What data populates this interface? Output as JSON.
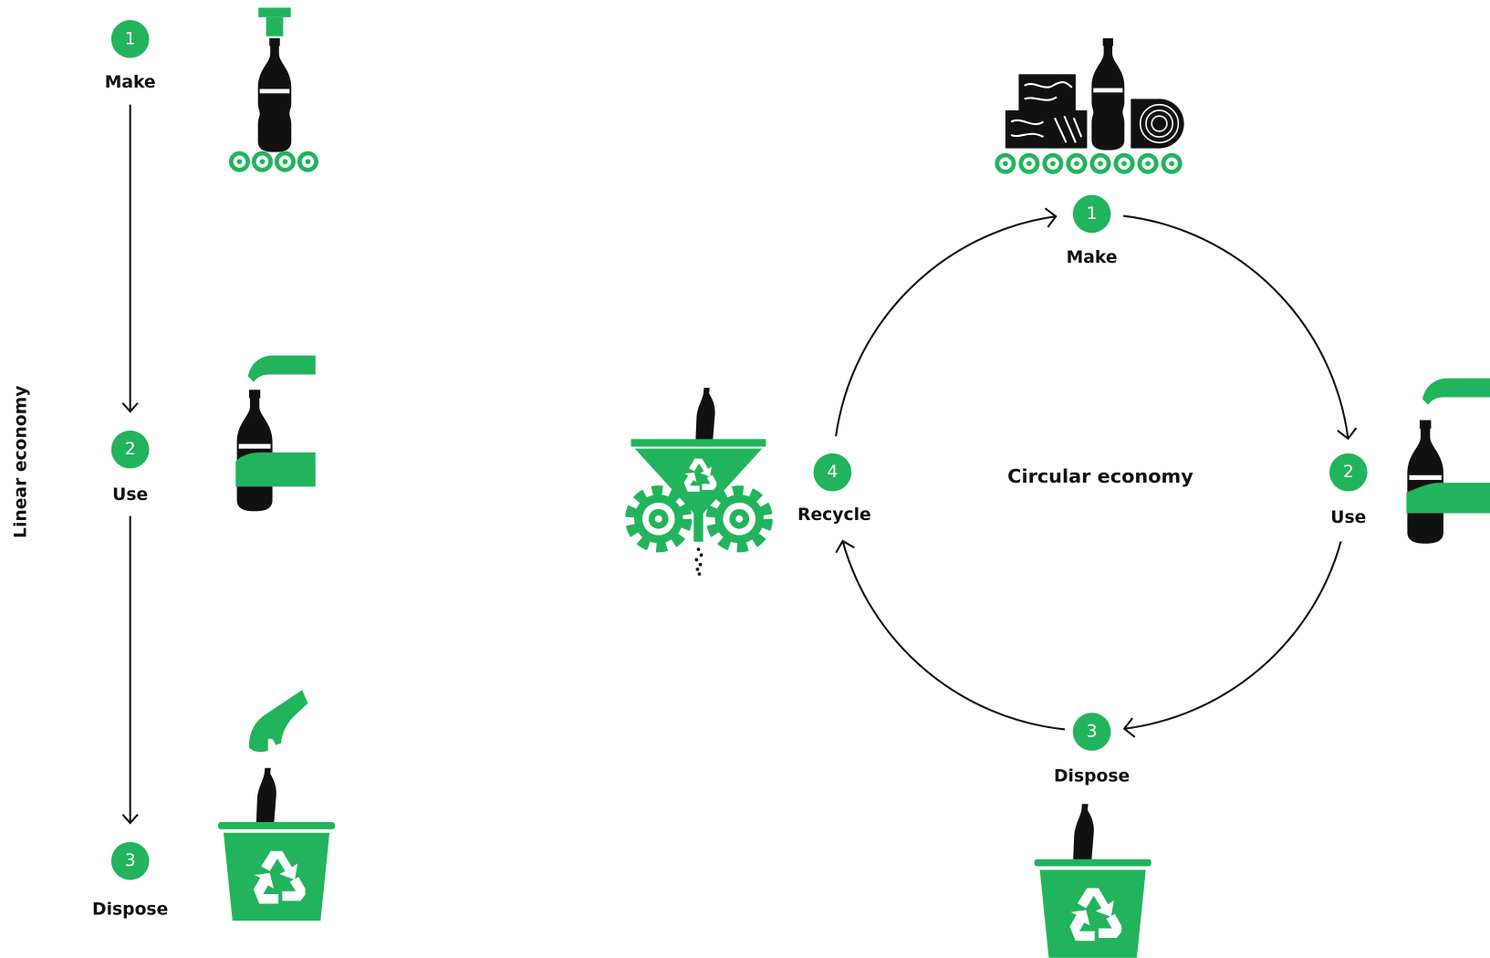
{
  "linear": {
    "title": "Linear economy",
    "steps": [
      {
        "number": 1,
        "label": "Make"
      },
      {
        "number": 2,
        "label": "Use"
      },
      {
        "number": 3,
        "label": "Dispose"
      }
    ]
  },
  "circular": {
    "title": "Circular economy",
    "steps": [
      {
        "number": 1,
        "label": "Make"
      },
      {
        "number": 2,
        "label": "Use"
      },
      {
        "number": 3,
        "label": "Dispose"
      },
      {
        "number": 4,
        "label": "Recycle"
      }
    ]
  }
}
